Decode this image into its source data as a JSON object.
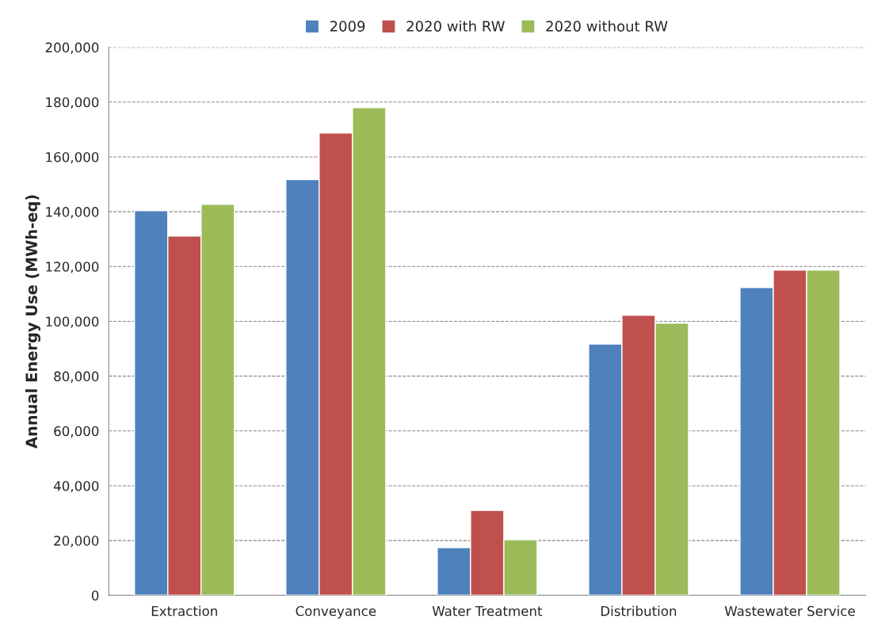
{
  "chart_data": {
    "type": "bar",
    "categories": [
      "Extraction",
      "Conveyance",
      "Water Treatment",
      "Distribution",
      "Wastewater Service"
    ],
    "series": [
      {
        "name": "2009",
        "color": "#4f81bd",
        "values": [
          140400,
          151700,
          17400,
          91700,
          112300
        ]
      },
      {
        "name": "2020 with RW",
        "color": "#c0504d",
        "values": [
          131100,
          168700,
          31000,
          102200,
          118700
        ]
      },
      {
        "name": "2020 without RW",
        "color": "#9bbb59",
        "values": [
          142700,
          178000,
          20300,
          99300,
          118700
        ]
      }
    ],
    "ylabel": "Annual Energy Use (MWh-eq)",
    "ylim": [
      0,
      200000
    ],
    "yticks": [
      {
        "value": 0,
        "label": "0"
      },
      {
        "value": 20000,
        "label": "20,000"
      },
      {
        "value": 40000,
        "label": "40,000"
      },
      {
        "value": 60000,
        "label": "60,000"
      },
      {
        "value": 80000,
        "label": "80,000"
      },
      {
        "value": 100000,
        "label": "100,000"
      },
      {
        "value": 120000,
        "label": "120,000"
      },
      {
        "value": 140000,
        "label": "140,000"
      },
      {
        "value": 160000,
        "label": "160,000"
      },
      {
        "value": 180000,
        "label": "180,000"
      },
      {
        "value": 200000,
        "label": "200,000"
      }
    ],
    "grid": "y",
    "legend": "top"
  }
}
